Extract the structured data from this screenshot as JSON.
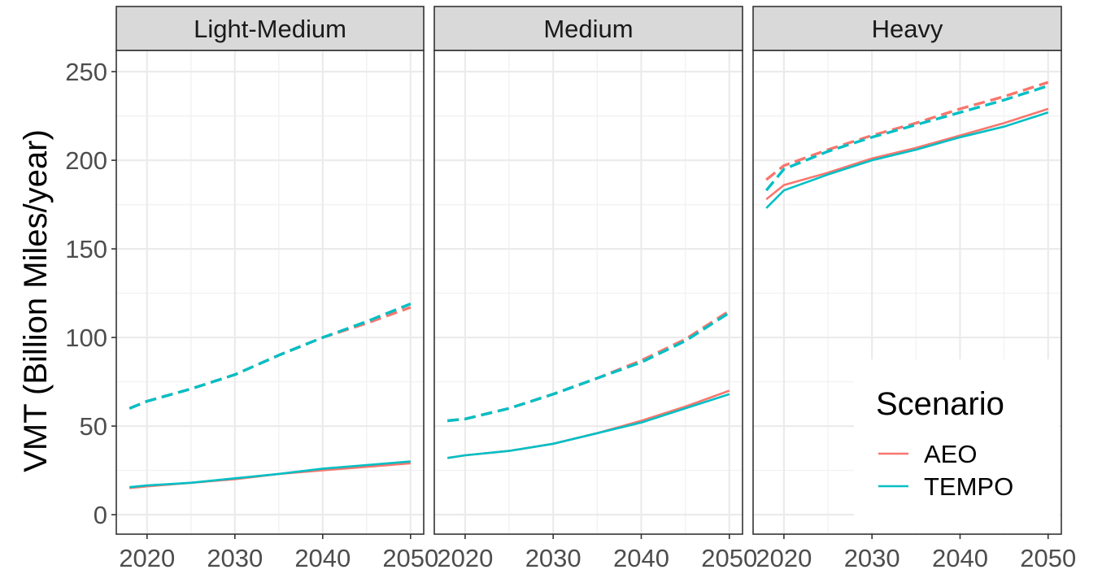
{
  "chart_data": {
    "type": "line",
    "ylabel": "VMT  (Billion Miles/year)",
    "xlabel": "",
    "xlim": [
      2016.5,
      2051.5
    ],
    "ylim": [
      -11,
      262
    ],
    "x_ticks": [
      2020,
      2030,
      2040,
      2050
    ],
    "y_ticks": [
      0,
      50,
      100,
      150,
      200,
      250
    ],
    "grid": true,
    "legend": {
      "title": "Scenario",
      "placement": "bottom-right",
      "items": [
        {
          "label": "AEO",
          "color": "#F8766D"
        },
        {
          "label": "TEMPO",
          "color": "#00BFC4"
        }
      ]
    },
    "x": [
      2018,
      2020,
      2025,
      2030,
      2035,
      2040,
      2045,
      2050
    ],
    "panels": [
      {
        "title": "Light-Medium",
        "series": [
          {
            "scenario": "AEO",
            "linetype": "solid",
            "values": [
              15,
              16,
              18,
              20,
              23,
              25,
              27,
              29
            ]
          },
          {
            "scenario": "TEMPO",
            "linetype": "solid",
            "values": [
              15.5,
              16.5,
              18,
              20.5,
              23,
              26,
              28,
              30
            ]
          },
          {
            "scenario": "AEO",
            "linetype": "dashed",
            "values": [
              60,
              64,
              71,
              79,
              90,
              100,
              108,
              117
            ]
          },
          {
            "scenario": "TEMPO",
            "linetype": "dashed",
            "values": [
              60,
              64,
              71,
              79,
              90,
              100,
              109,
              119
            ]
          }
        ]
      },
      {
        "title": "Medium",
        "series": [
          {
            "scenario": "AEO",
            "linetype": "solid",
            "values": [
              32,
              33.5,
              36,
              40,
              46,
              53,
              61,
              70
            ]
          },
          {
            "scenario": "TEMPO",
            "linetype": "solid",
            "values": [
              32,
              33.5,
              36,
              40,
              46,
              52,
              60,
              68
            ]
          },
          {
            "scenario": "AEO",
            "linetype": "dashed",
            "values": [
              53,
              54,
              60,
              68,
              77,
              87,
              99,
              115
            ]
          },
          {
            "scenario": "TEMPO",
            "linetype": "dashed",
            "values": [
              53,
              54,
              60,
              68,
              77,
              86,
              98,
              114
            ]
          }
        ]
      },
      {
        "title": "Heavy",
        "series": [
          {
            "scenario": "AEO",
            "linetype": "solid",
            "values": [
              178,
              186,
              193,
              201,
              207,
              214,
              221,
              229
            ]
          },
          {
            "scenario": "TEMPO",
            "linetype": "solid",
            "values": [
              173,
              183,
              192,
              200,
              206,
              213,
              219,
              227
            ]
          },
          {
            "scenario": "AEO",
            "linetype": "dashed",
            "values": [
              189,
              197,
              206,
              214,
              221,
              229,
              236,
              244
            ]
          },
          {
            "scenario": "TEMPO",
            "linetype": "dashed",
            "values": [
              183,
              195,
              205,
              213,
              220,
              227,
              234,
              242
            ]
          }
        ]
      }
    ]
  }
}
